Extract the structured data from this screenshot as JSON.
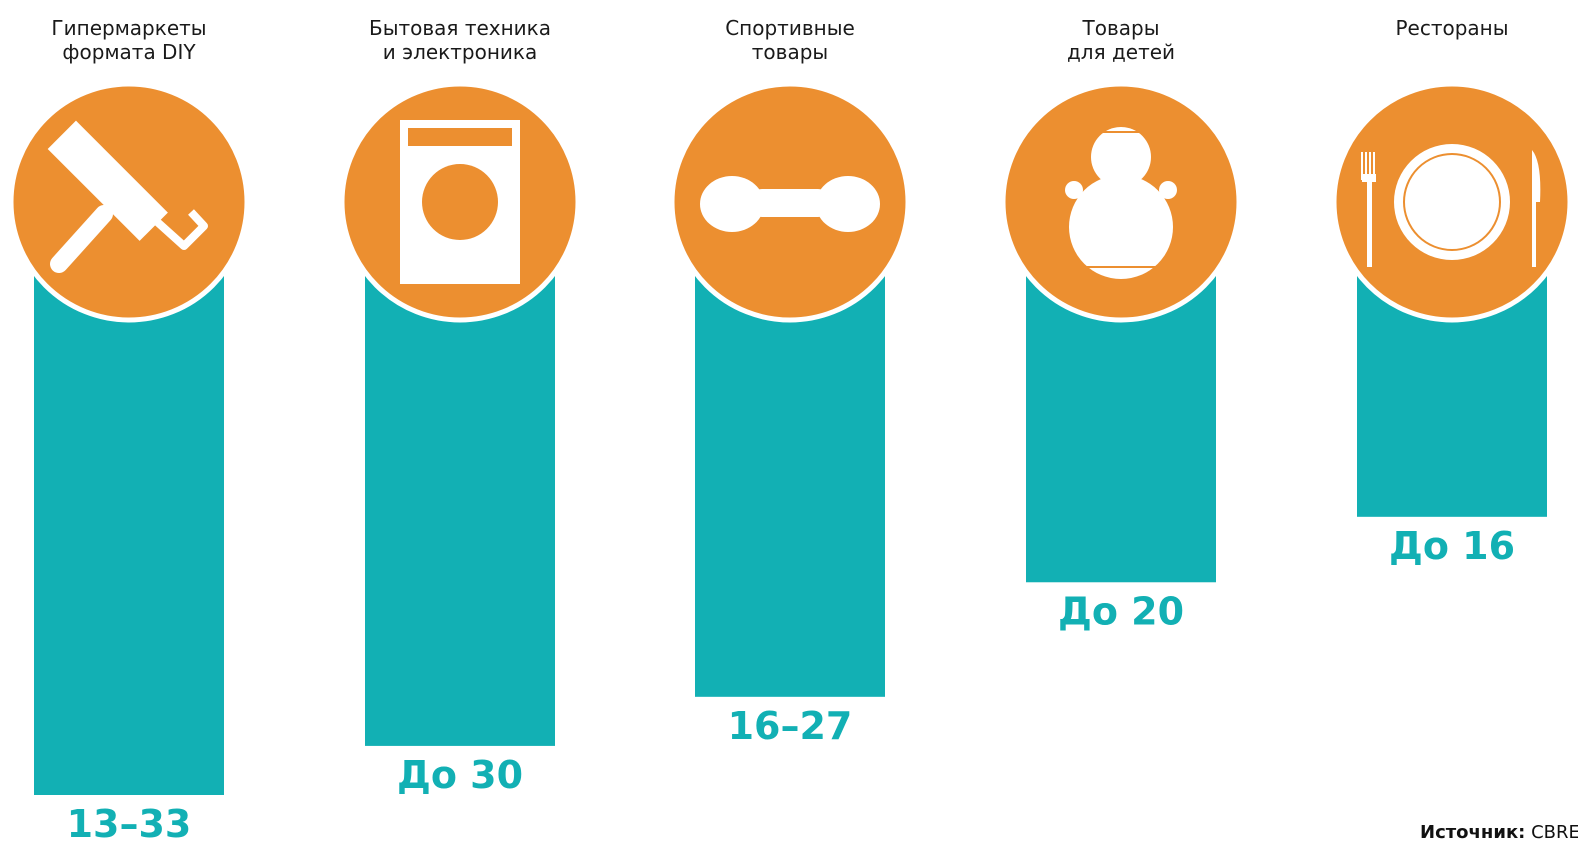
{
  "chart_data": {
    "type": "bar",
    "categories": [
      [
        "Гипермаркеты",
        "формата DIY"
      ],
      [
        "Бытовая техника",
        "и электроника"
      ],
      [
        "Спортивные",
        "товары"
      ],
      [
        "Товары",
        "для детей"
      ],
      [
        "Рестораны"
      ]
    ],
    "values": [
      33,
      30,
      27,
      20,
      16
    ],
    "value_labels": [
      "13–33",
      "До 30",
      "16–27",
      "До 20",
      "До 16"
    ],
    "color": "#12b0b4",
    "icon_color": "#ec8f30",
    "source": {
      "label": "Источник:",
      "text": "CBRE"
    }
  }
}
